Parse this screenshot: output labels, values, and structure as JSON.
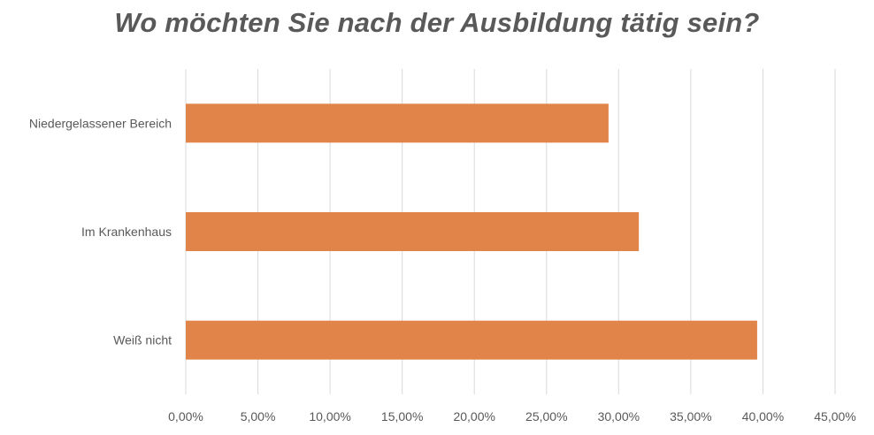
{
  "chart_data": {
    "type": "bar",
    "orientation": "horizontal",
    "title": "Wo möchten Sie nach der Ausbildung tätig sein?",
    "categories": [
      "Niedergelassener Bereich",
      "Im Krankenhaus",
      "Weiß nicht"
    ],
    "values": [
      29.3,
      31.4,
      39.6
    ],
    "xlim": [
      0,
      45
    ],
    "x_ticks": [
      "0,00%",
      "5,00%",
      "10,00%",
      "15,00%",
      "20,00%",
      "25,00%",
      "30,00%",
      "35,00%",
      "40,00%",
      "45,00%"
    ],
    "grid": "vertical",
    "legend": "none",
    "bar_color": "#E0844A",
    "grid_color": "#D9D9D9",
    "text_color": "#595959"
  }
}
